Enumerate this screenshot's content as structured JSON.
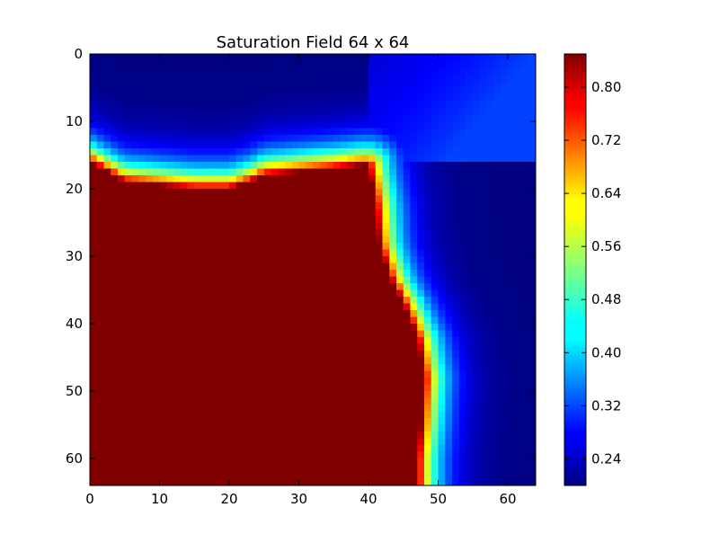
{
  "chart_data": {
    "type": "heatmap",
    "title": "Saturation Field 64 x 64",
    "xlabel": "",
    "ylabel": "",
    "grid_size": [
      64,
      64
    ],
    "xlim": [
      0,
      64
    ],
    "ylim": [
      64,
      0
    ],
    "x_ticks": [
      "0",
      "10",
      "20",
      "30",
      "40",
      "50",
      "60"
    ],
    "x_tick_values": [
      0,
      10,
      20,
      30,
      40,
      50,
      60
    ],
    "y_ticks": [
      "0",
      "10",
      "20",
      "30",
      "40",
      "50",
      "60"
    ],
    "y_tick_values": [
      0,
      10,
      20,
      30,
      40,
      50,
      60
    ],
    "colormap": "jet",
    "colorbar": {
      "range": [
        0.2,
        0.85
      ],
      "ticks": [
        "0.24",
        "0.32",
        "0.40",
        "0.48",
        "0.56",
        "0.64",
        "0.72",
        "0.80"
      ],
      "tick_values": [
        0.24,
        0.32,
        0.4,
        0.48,
        0.56,
        0.64,
        0.72,
        0.8
      ]
    },
    "field_description": {
      "value_min": 0.2,
      "value_max": 0.85,
      "front_row_by_column": [
        [
          0,
          16
        ],
        [
          5,
          19
        ],
        [
          10,
          19.5
        ],
        [
          15,
          20
        ],
        [
          20,
          20
        ],
        [
          23,
          19
        ],
        [
          25,
          18
        ],
        [
          30,
          17.5
        ],
        [
          35,
          17
        ],
        [
          39,
          16.5
        ],
        [
          40,
          16.5
        ]
      ],
      "front_col_by_row": [
        [
          16.5,
          40
        ],
        [
          22,
          41
        ],
        [
          28,
          41.5
        ],
        [
          33,
          43
        ],
        [
          37,
          45
        ],
        [
          42,
          47
        ],
        [
          48,
          48
        ],
        [
          55,
          47.5
        ],
        [
          60,
          47
        ],
        [
          64,
          47
        ]
      ],
      "front_width_cells": 2.8,
      "tail_width_cells": 4.5,
      "top_right_background_cutoff": 0.19
    }
  }
}
